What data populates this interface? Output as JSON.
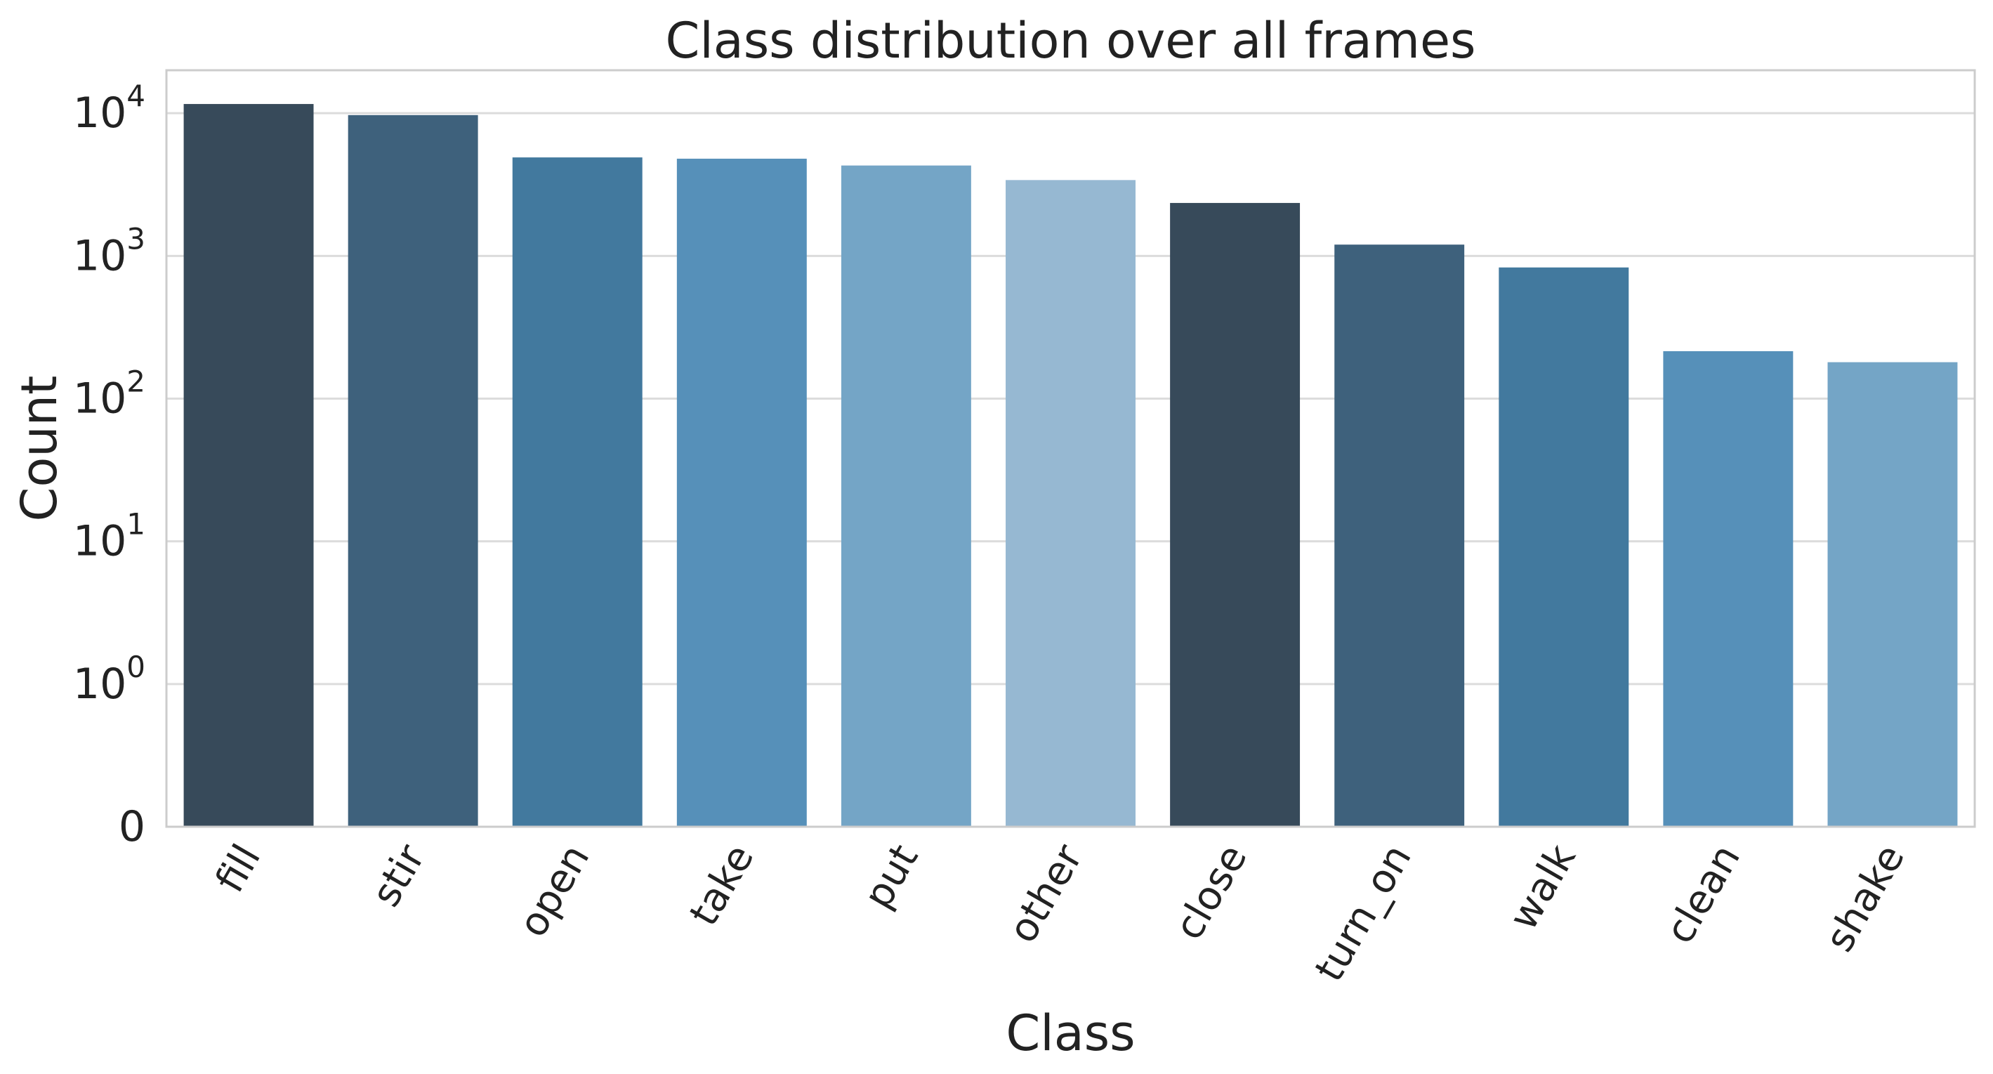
{
  "chart_data": {
    "type": "bar",
    "title": "Class distribution over all frames",
    "xlabel": "Class",
    "ylabel": "Count",
    "yscale": "symlog",
    "ylim": [
      0,
      20000
    ],
    "grid": true,
    "y_ticks": [
      {
        "value": 0,
        "base": "0",
        "exp": ""
      },
      {
        "value": 1,
        "base": "10",
        "exp": "0"
      },
      {
        "value": 10,
        "base": "10",
        "exp": "1"
      },
      {
        "value": 100,
        "base": "10",
        "exp": "2"
      },
      {
        "value": 1000,
        "base": "10",
        "exp": "3"
      },
      {
        "value": 10000,
        "base": "10",
        "exp": "4"
      }
    ],
    "categories": [
      "fill",
      "stir",
      "open",
      "take",
      "put",
      "other",
      "close",
      "turn_on",
      "walk",
      "clean",
      "shake"
    ],
    "values": [
      11600,
      9700,
      4900,
      4800,
      4300,
      3400,
      2350,
      1200,
      830,
      215,
      180
    ],
    "colors": [
      "#374a5a",
      "#3e617c",
      "#42799e",
      "#5690b9",
      "#74a5c6",
      "#96b8d2",
      "#374a5a",
      "#3e617c",
      "#42799e",
      "#5690b9",
      "#74a5c6"
    ]
  }
}
